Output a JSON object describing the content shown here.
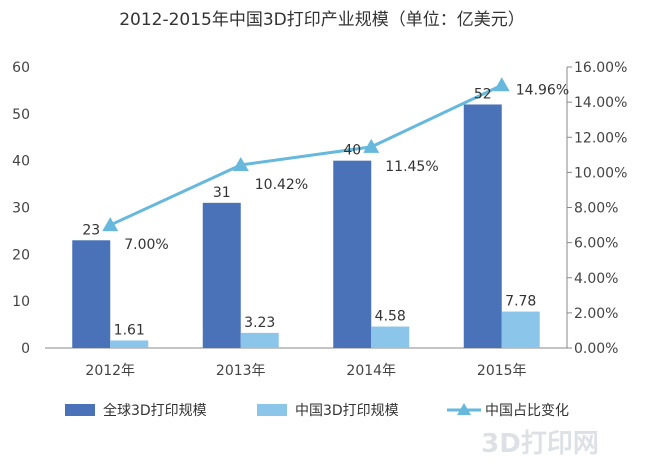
{
  "chart_data": {
    "type": "bar",
    "title": "2012-2015年中国3D打印产业规模（单位：亿美元）",
    "categories": [
      "2012年",
      "2013年",
      "2014年",
      "2015年"
    ],
    "series": [
      {
        "name": "全球3D打印规模",
        "type": "bar",
        "axis": "left",
        "color": "#4a72b8",
        "values": [
          23,
          31,
          40,
          52
        ],
        "labels": [
          "23",
          "31",
          "40",
          "52"
        ]
      },
      {
        "name": "中国3D打印规模",
        "type": "bar",
        "axis": "left",
        "color": "#8cc5ea",
        "values": [
          1.61,
          3.23,
          4.58,
          7.78
        ],
        "labels": [
          "1.61",
          "3.23",
          "4.58",
          "7.78"
        ]
      },
      {
        "name": "中国占比变化",
        "type": "line",
        "axis": "right",
        "color": "#66b8dc",
        "marker": "triangle",
        "values": [
          7.0,
          10.42,
          11.45,
          14.96
        ],
        "labels": [
          "7.00%",
          "10.42%",
          "11.45%",
          "14.96%"
        ]
      }
    ],
    "left_axis": {
      "ylim": [
        0,
        60
      ],
      "ticks": [
        "0",
        "10",
        "20",
        "30",
        "40",
        "50",
        "60"
      ]
    },
    "right_axis": {
      "ylim": [
        0,
        16
      ],
      "ticks": [
        "0.00%",
        "2.00%",
        "4.00%",
        "6.00%",
        "8.00%",
        "10.00%",
        "12.00%",
        "14.00%",
        "16.00%"
      ]
    },
    "grid": false,
    "legend": "bottom"
  },
  "watermark": {
    "text": "3D打印网"
  }
}
